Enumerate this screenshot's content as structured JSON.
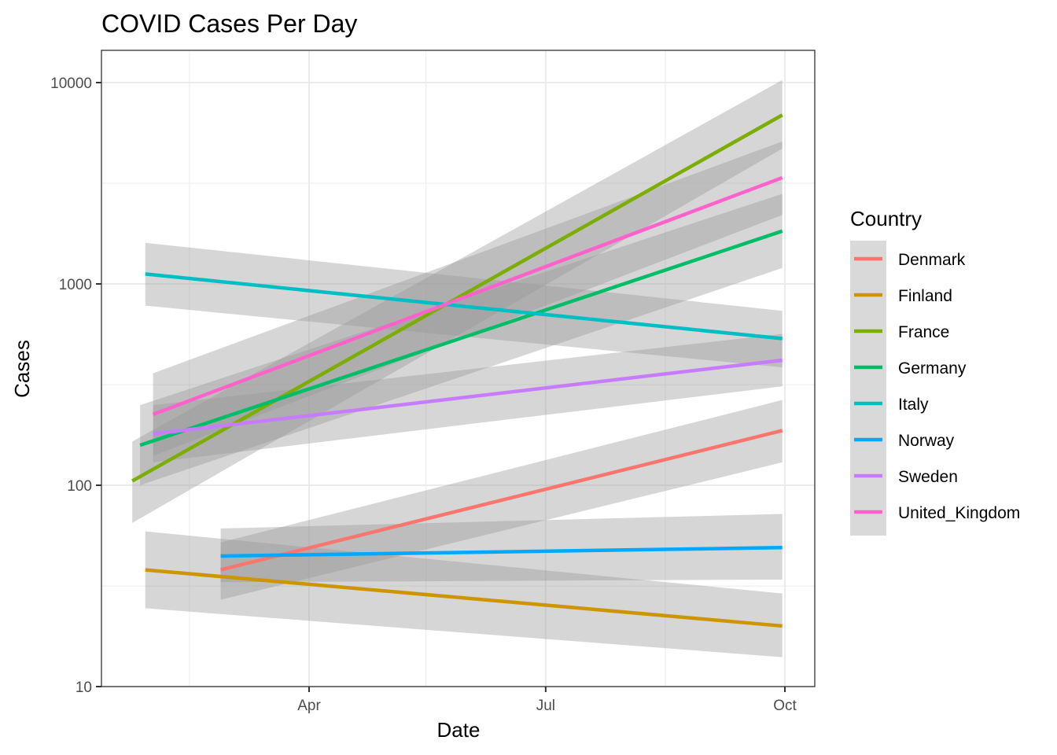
{
  "chart_data": {
    "type": "line",
    "title": "COVID Cases Per Day",
    "xlabel": "Date",
    "ylabel": "Cases",
    "y_scale": "log10",
    "ylim": [
      10,
      14000
    ],
    "xlim": [
      "2020-01-15",
      "2020-10-04"
    ],
    "x_ticks": [
      {
        "date": "2020-04-01",
        "label": "Apr"
      },
      {
        "date": "2020-07-01",
        "label": "Jul"
      },
      {
        "date": "2020-10-01",
        "label": "Oct"
      }
    ],
    "x_minor_ticks": [
      "2020-02-15",
      "2020-05-16",
      "2020-08-16"
    ],
    "y_ticks": [
      {
        "value": 10,
        "label": "10"
      },
      {
        "value": 100,
        "label": "100"
      },
      {
        "value": 1000,
        "label": "1000"
      },
      {
        "value": 10000,
        "label": "10000"
      }
    ],
    "y_minor_ticks": [
      31.6,
      316,
      3162
    ],
    "grid": true,
    "legend": {
      "title": "Country",
      "position": "right"
    },
    "confidence_band_color": "#999999",
    "series": [
      {
        "name": "Denmark",
        "color": "#F8766D",
        "x": [
          "2020-02-27",
          "2020-09-30"
        ],
        "y": [
          38,
          187
        ],
        "ci_low": [
          27,
          130
        ],
        "ci_high": [
          52,
          265
        ]
      },
      {
        "name": "Finland",
        "color": "#CD9600",
        "x": [
          "2020-01-29",
          "2020-09-30"
        ],
        "y": [
          38,
          20
        ],
        "ci_low": [
          24.5,
          14
        ],
        "ci_high": [
          59,
          29
        ]
      },
      {
        "name": "France",
        "color": "#7CAE00",
        "x": [
          "2020-01-24",
          "2020-09-30"
        ],
        "y": [
          105,
          6900
        ],
        "ci_low": [
          65,
          4700
        ],
        "ci_high": [
          165,
          10300
        ]
      },
      {
        "name": "Germany",
        "color": "#00BE67",
        "x": [
          "2020-01-27",
          "2020-09-30"
        ],
        "y": [
          158,
          1830
        ],
        "ci_low": [
          100,
          1200
        ],
        "ci_high": [
          250,
          2800
        ]
      },
      {
        "name": "Italy",
        "color": "#00BFC4",
        "x": [
          "2020-01-29",
          "2020-09-30"
        ],
        "y": [
          1120,
          535
        ],
        "ci_low": [
          780,
          385
        ],
        "ci_high": [
          1600,
          735
        ]
      },
      {
        "name": "Norway",
        "color": "#00A9FF",
        "x": [
          "2020-02-27",
          "2020-09-30"
        ],
        "y": [
          44.5,
          49
        ],
        "ci_low": [
          33,
          34
        ],
        "ci_high": [
          61,
          72
        ]
      },
      {
        "name": "Sweden",
        "color": "#C77CFF",
        "x": [
          "2020-02-01",
          "2020-09-30"
        ],
        "y": [
          180,
          418
        ],
        "ci_low": [
          130,
          310
        ],
        "ci_high": [
          250,
          565
        ]
      },
      {
        "name": "United_Kingdom",
        "color": "#FF61CC",
        "x": [
          "2020-02-01",
          "2020-09-30"
        ],
        "y": [
          225,
          3370
        ],
        "ci_low": [
          140,
          2200
        ],
        "ci_high": [
          360,
          5100
        ]
      }
    ]
  }
}
